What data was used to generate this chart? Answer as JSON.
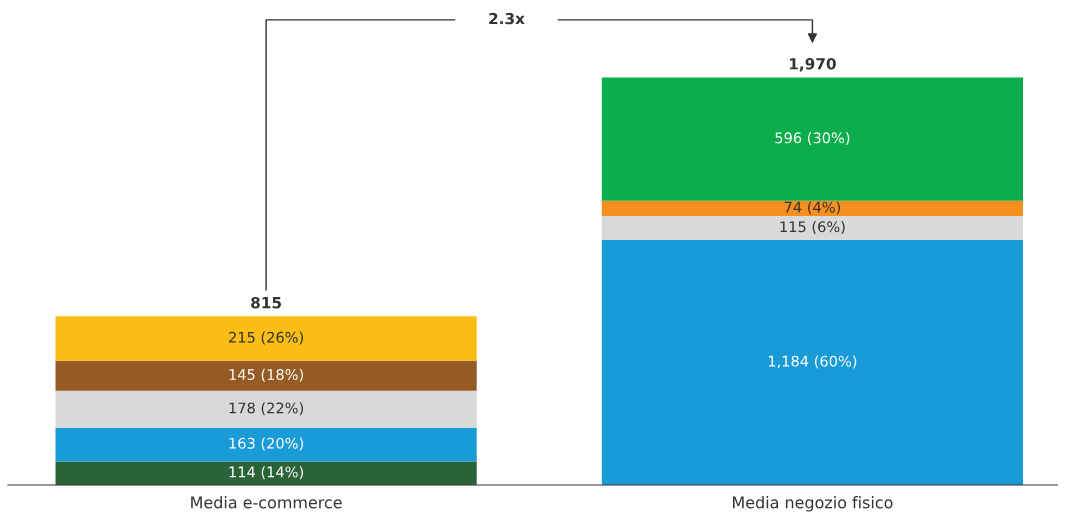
{
  "chart_data": {
    "type": "bar",
    "stacked": true,
    "categories": [
      "Media e-commerce",
      "Media negozio fisico"
    ],
    "series": [
      {
        "color": "#2a6338",
        "values": [
          114,
          null
        ],
        "value_labels": [
          "114 (14%)",
          null
        ]
      },
      {
        "color": "#189bd7",
        "values": [
          163,
          1184
        ],
        "value_labels": [
          "163 (20%)",
          "1,184 (60%)"
        ]
      },
      {
        "color": "#d9d9d9",
        "values": [
          178,
          115
        ],
        "value_labels": [
          "178 (22%)",
          "115 (6%)"
        ]
      },
      {
        "color": "#955b24",
        "values": [
          145,
          null
        ],
        "value_labels": [
          "145 (18%)",
          null
        ]
      },
      {
        "color": "#f7901e",
        "values": [
          null,
          74
        ],
        "value_labels": [
          null,
          "74 (4%)"
        ]
      },
      {
        "color": "#f9bd14",
        "values": [
          215,
          null
        ],
        "value_labels": [
          "215 (26%)",
          null
        ]
      },
      {
        "color": "#0cad4b",
        "values": [
          null,
          596
        ],
        "value_labels": [
          null,
          "596 (30%)"
        ]
      }
    ],
    "totals": [
      "815",
      "1,970"
    ],
    "annotations": [
      "2.3x"
    ],
    "grid": false,
    "legend": false
  }
}
